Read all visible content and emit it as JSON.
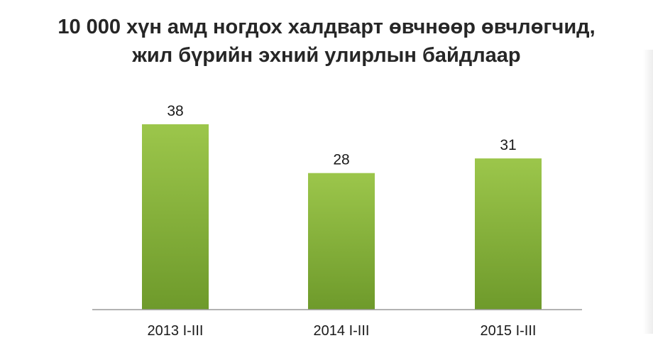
{
  "title_lines": [
    "10 000 хүн амд ногдох халдварт өвчнөөр өвчлөгчид,",
    "жил бүрийн эхний улирлын байдлаар"
  ],
  "colors": {
    "bar_top": "#9cc64b",
    "bar_bottom": "#6e9a2b",
    "axis": "#9a9a9a",
    "text": "#1a1a1a"
  },
  "chart_data": {
    "type": "bar",
    "title": "10 000 хүн амд ногдох халдварт өвчнөөр өвчлөгчид, жил бүрийн эхний улирлын байдлаар",
    "categories": [
      "2013 I-III",
      "2014 I-III",
      "2015 I-III"
    ],
    "values": [
      38,
      28,
      31
    ],
    "data_labels": [
      "38",
      "28",
      "31"
    ],
    "xlabel": "",
    "ylabel": "",
    "ylim": [
      0,
      38
    ],
    "grid": false,
    "legend": "none"
  }
}
